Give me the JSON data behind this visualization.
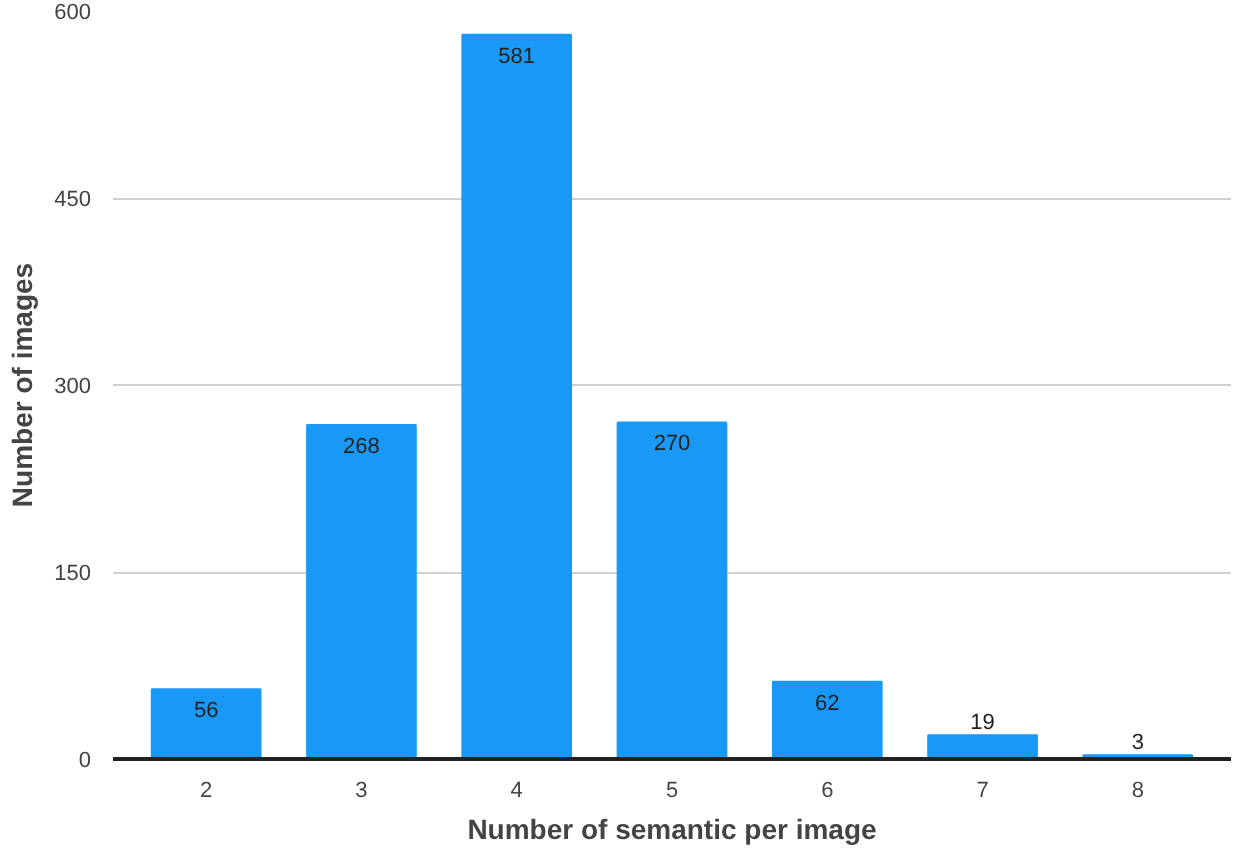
{
  "chart_data": {
    "type": "bar",
    "xlabel": "Number of semantic per image",
    "ylabel": "Number of images",
    "categories": [
      "2",
      "3",
      "4",
      "5",
      "6",
      "7",
      "8"
    ],
    "values": [
      56,
      268,
      581,
      270,
      62,
      19,
      3
    ],
    "color": "#1a98f5",
    "ylim": [
      0,
      600
    ],
    "yticks": [
      0,
      150,
      300,
      450,
      600
    ],
    "grid": "y",
    "data_labels": true
  }
}
